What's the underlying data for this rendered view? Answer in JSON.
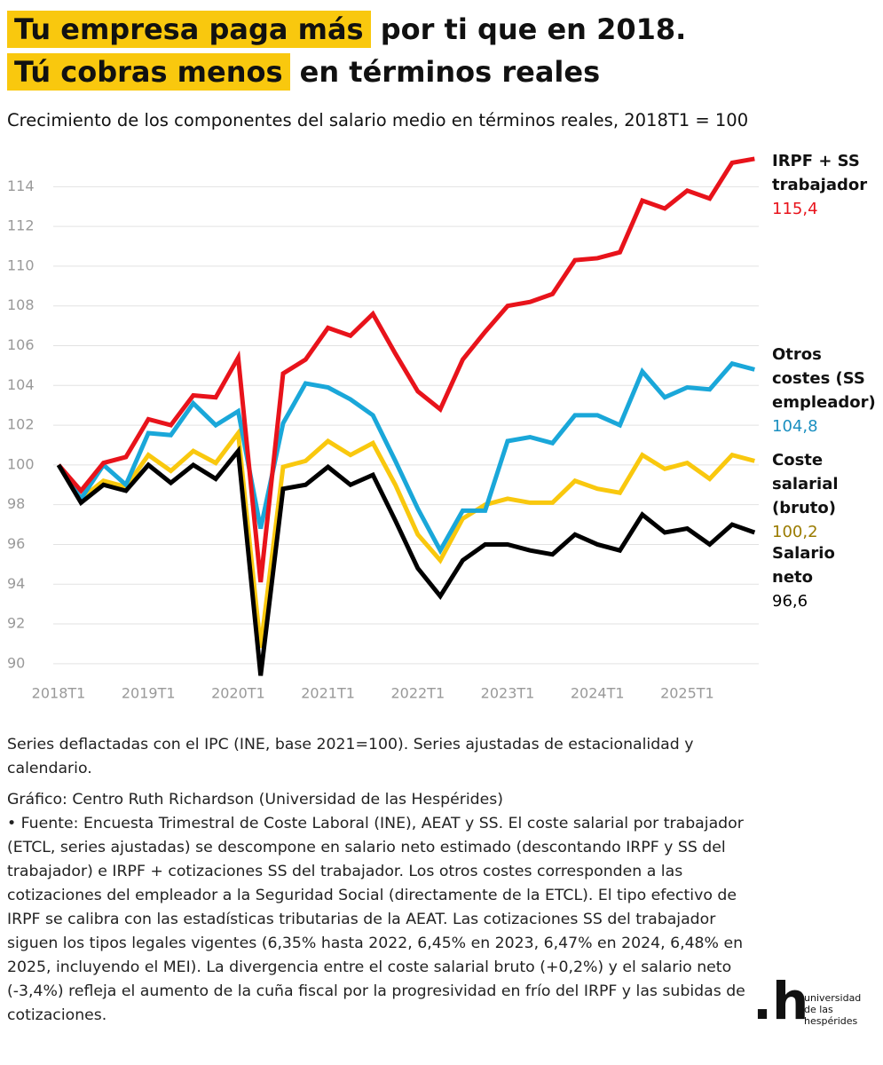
{
  "title_lines": [
    {
      "highlight": "Tu empresa paga más",
      "rest": "por ti que en 2018."
    },
    {
      "highlight": "Tú cobras menos",
      "rest": "en términos reales"
    }
  ],
  "chart_data": {
    "type": "line",
    "subtitle": "Crecimiento de los componentes del salario medio en términos reales, 2018T1 = 100",
    "categories": [
      "2018T1",
      null,
      null,
      null,
      "2019T1",
      null,
      null,
      null,
      "2020T1",
      null,
      null,
      null,
      "2021T1",
      null,
      null,
      null,
      "2022T1",
      null,
      null,
      null,
      "2023T1",
      null,
      null,
      null,
      "2024T1",
      null,
      null,
      null,
      "2025T1",
      null,
      null,
      null
    ],
    "series": [
      {
        "name": "IRPF + SS trabajador",
        "color": "#e8131b",
        "label_color": "#e8131b",
        "values": [
          100,
          98.7,
          100.1,
          100.4,
          102.3,
          102.0,
          103.5,
          103.4,
          105.4,
          94.1,
          104.6,
          105.3,
          106.9,
          106.5,
          107.6,
          105.6,
          103.7,
          102.8,
          105.3,
          106.7,
          108.0,
          108.2,
          108.6,
          110.3,
          110.4,
          110.7,
          113.3,
          112.9,
          113.8,
          113.4,
          115.2,
          115.4
        ],
        "end_value_label": "115,4"
      },
      {
        "name": "Otros costes (SS empleador)",
        "color": "#1aa7d9",
        "label_color": "#1a8fc0",
        "values": [
          100,
          98.3,
          100.0,
          99.0,
          101.6,
          101.5,
          103.1,
          102.0,
          102.7,
          96.8,
          102.1,
          104.1,
          103.9,
          103.3,
          102.5,
          100.2,
          97.8,
          95.7,
          97.7,
          97.7,
          101.2,
          101.4,
          101.1,
          102.5,
          102.5,
          102.0,
          104.7,
          103.4,
          103.9,
          103.8,
          105.1,
          104.8
        ],
        "end_value_label": "104,8"
      },
      {
        "name": "Coste salarial (bruto)",
        "color": "#f9c80e",
        "label_color": "#9a7b00",
        "values": [
          100,
          98.3,
          99.2,
          98.9,
          100.5,
          99.7,
          100.7,
          100.1,
          101.6,
          90.8,
          99.9,
          100.2,
          101.2,
          100.5,
          101.1,
          99.0,
          96.5,
          95.2,
          97.3,
          98.0,
          98.3,
          98.1,
          98.1,
          99.2,
          98.8,
          98.6,
          100.5,
          99.8,
          100.1,
          99.3,
          100.5,
          100.2
        ],
        "end_value_label": "100,2"
      },
      {
        "name": "Salario neto",
        "color": "#000000",
        "label_color": "#000000",
        "values": [
          100,
          98.1,
          99.0,
          98.7,
          100.0,
          99.1,
          100.0,
          99.3,
          100.7,
          89.4,
          98.8,
          99.0,
          99.9,
          99.0,
          99.5,
          97.2,
          94.8,
          93.4,
          95.2,
          96.0,
          96.0,
          95.7,
          95.5,
          96.5,
          96.0,
          95.7,
          97.5,
          96.6,
          96.8,
          96.0,
          97.0,
          96.6
        ],
        "end_value_label": "96,6"
      }
    ],
    "ylim": [
      89.1,
      115.8
    ],
    "yticks": [
      90,
      92,
      94,
      96,
      98,
      100,
      102,
      104,
      106,
      108,
      110,
      112,
      114
    ],
    "grid": true
  },
  "notes": "Series deflactadas con el IPC (INE, base 2021=100). Series ajustadas de estacionalidad y calendario.",
  "credit": "Gráfico: Centro Ruth Richardson (Universidad de las Hespérides)",
  "source": " • Fuente: Encuesta Trimestral de Coste Laboral (INE), AEAT y SS. El coste salarial por trabajador (ETCL, series ajustadas) se descompone en salario neto estimado (descontando IRPF y SS del trabajador) e IRPF + cotizaciones SS del trabajador. Los otros costes corresponden a las cotizaciones del empleador a la Seguridad Social (directamente de la ETCL). El tipo efectivo de IRPF se calibra con las estadísticas tributarias de la AEAT. Las cotizaciones SS del trabajador siguen los tipos legales vigentes (6,35% hasta 2022, 6,45% en 2023, 6,47% en 2024, 6,48% en 2025, incluyendo el MEI). La divergencia entre el coste salarial bruto (+0,2%) y el salario neto (-3,4%) refleja el aumento de la cuña fiscal por la progresividad en frío del IRPF y las subidas de cotizaciones.",
  "logo": {
    "mark": ".h",
    "text": "universidad de las hespérides"
  }
}
